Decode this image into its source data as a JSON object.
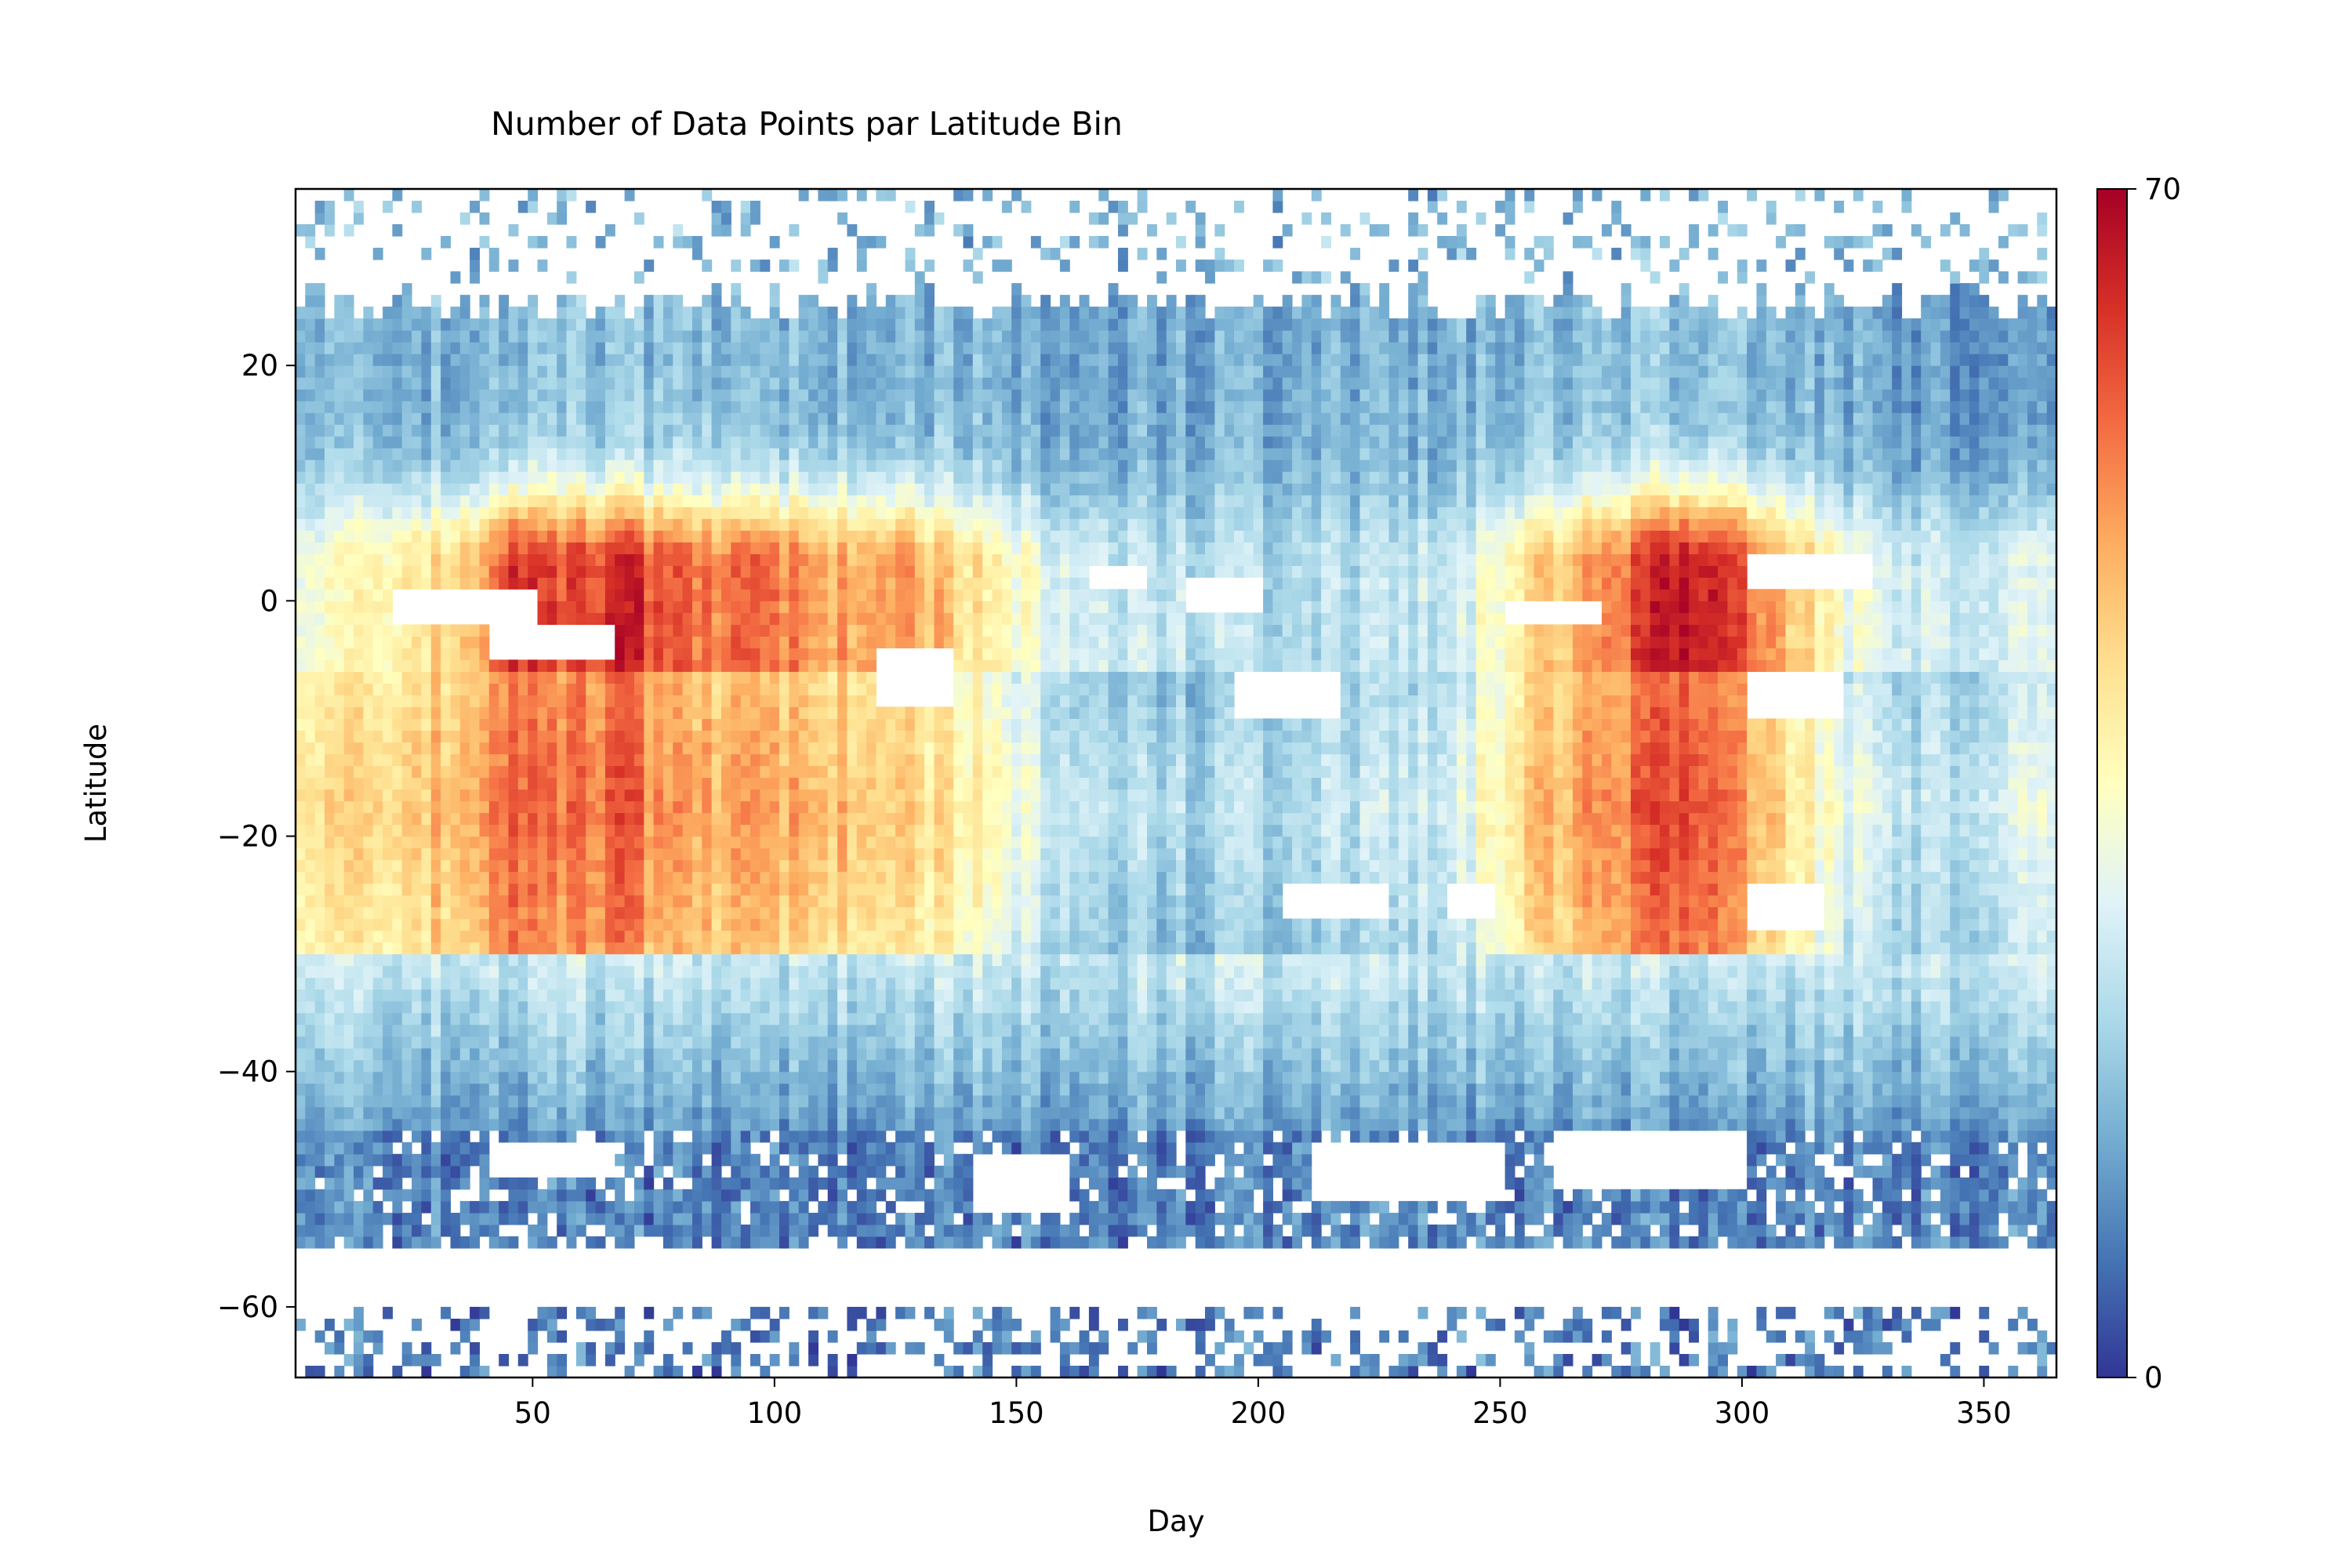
{
  "chart_data": {
    "type": "heatmap",
    "title": "Number of Data Points par Latitude Bin",
    "xlabel": "Day",
    "ylabel": "Latitude",
    "xlim": [
      1,
      365
    ],
    "ylim": [
      -66,
      35
    ],
    "xticks": [
      50,
      100,
      150,
      200,
      250,
      300,
      350
    ],
    "yticks": [
      -60,
      -40,
      -20,
      0,
      20
    ],
    "colorbar": {
      "min": 0,
      "max": 70,
      "ticks": [
        0,
        70
      ],
      "colormap": "RdYlBu_r"
    },
    "grid": false,
    "day_step": 2,
    "lat_bin": 1,
    "profiles": {
      "days": [
        1,
        20,
        40,
        45,
        50,
        55,
        60,
        68,
        75,
        85,
        95,
        110,
        125,
        140,
        160,
        180,
        200,
        220,
        240,
        255,
        270,
        280,
        287,
        300,
        320,
        340,
        365
      ],
      "equator_peak": [
        30,
        38,
        50,
        68,
        60,
        58,
        60,
        66,
        58,
        55,
        58,
        50,
        52,
        40,
        28,
        24,
        22,
        22,
        26,
        42,
        52,
        62,
        70,
        58,
        32,
        25,
        28
      ],
      "south_peak": [
        40,
        44,
        52,
        62,
        55,
        54,
        56,
        60,
        52,
        50,
        52,
        48,
        46,
        38,
        26,
        22,
        22,
        24,
        28,
        46,
        52,
        58,
        64,
        52,
        30,
        24,
        30
      ],
      "north_level": [
        14,
        15,
        16,
        18,
        17,
        17,
        17,
        18,
        17,
        17,
        17,
        16,
        16,
        15,
        14,
        14,
        14,
        14,
        15,
        16,
        17,
        18,
        19,
        17,
        14,
        12,
        10
      ]
    },
    "gaps": [
      {
        "day_range": [
          20,
          50
        ],
        "lat_range": [
          -2,
          0
        ]
      },
      {
        "day_range": [
          40,
          66
        ],
        "lat_range": [
          -5,
          -3
        ]
      },
      {
        "day_range": [
          120,
          135
        ],
        "lat_range": [
          -9,
          -5
        ]
      },
      {
        "day_range": [
          165,
          175
        ],
        "lat_range": [
          1,
          2
        ]
      },
      {
        "day_range": [
          185,
          200
        ],
        "lat_range": [
          -1,
          1
        ]
      },
      {
        "day_range": [
          195,
          215
        ],
        "lat_range": [
          -10,
          -7
        ]
      },
      {
        "day_range": [
          250,
          270
        ],
        "lat_range": [
          -2,
          -1
        ]
      },
      {
        "day_range": [
          300,
          325
        ],
        "lat_range": [
          1,
          3
        ]
      },
      {
        "day_range": [
          300,
          320
        ],
        "lat_range": [
          -10,
          -7
        ]
      },
      {
        "day_range": [
          205,
          225
        ],
        "lat_range": [
          -27,
          -25
        ]
      },
      {
        "day_range": [
          238,
          248
        ],
        "lat_range": [
          -27,
          -25
        ]
      },
      {
        "day_range": [
          300,
          315
        ],
        "lat_range": [
          -28,
          -25
        ]
      },
      {
        "day_range": [
          40,
          65
        ],
        "lat_range": [
          -49,
          -47
        ]
      },
      {
        "day_range": [
          140,
          160
        ],
        "lat_range": [
          -52,
          -48
        ]
      },
      {
        "day_range": [
          210,
          250
        ],
        "lat_range": [
          -51,
          -47
        ]
      },
      {
        "day_range": [
          260,
          300
        ],
        "lat_range": [
          -50,
          -46
        ]
      }
    ]
  }
}
